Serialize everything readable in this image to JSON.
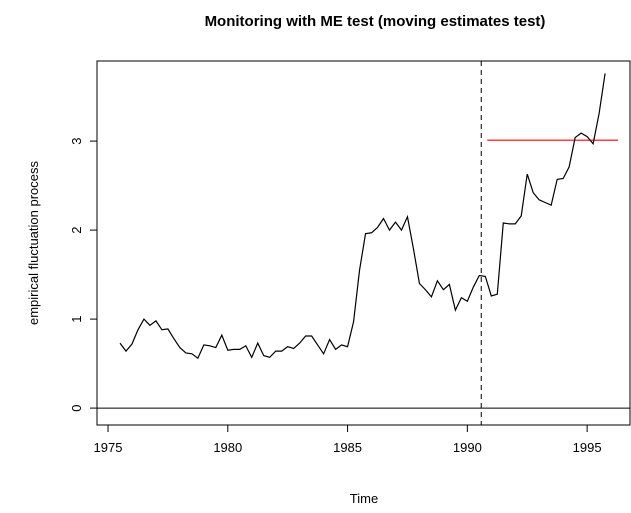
{
  "chart_data": {
    "type": "line",
    "title": "Monitoring with ME test (moving estimates test)",
    "xlabel": "Time",
    "ylabel": "empirical fluctuation process",
    "xlim": [
      1974.54,
      1996.79
    ],
    "ylim": [
      -0.19,
      3.9
    ],
    "xticks": [
      1975,
      1980,
      1985,
      1990,
      1995
    ],
    "yticks": [
      0,
      1,
      2,
      3
    ],
    "hline": 0,
    "vline": 1990.58,
    "boundary": {
      "value": 3.01,
      "start": 1990.83,
      "end": 1996.29,
      "color": "#ff0000"
    },
    "series": [
      {
        "color": "#000000",
        "x": [
          1975.5,
          1975.75,
          1976,
          1976.25,
          1976.5,
          1976.75,
          1977,
          1977.25,
          1977.5,
          1977.75,
          1978,
          1978.25,
          1978.5,
          1978.75,
          1979,
          1979.25,
          1979.5,
          1979.75,
          1980,
          1980.25,
          1980.5,
          1980.75,
          1981,
          1981.25,
          1981.5,
          1981.75,
          1982,
          1982.25,
          1982.5,
          1982.75,
          1983,
          1983.25,
          1983.5,
          1983.75,
          1984,
          1984.25,
          1984.5,
          1984.75,
          1985,
          1985.25,
          1985.5,
          1985.75,
          1986,
          1986.25,
          1986.5,
          1986.75,
          1987,
          1987.25,
          1987.5,
          1987.75,
          1988,
          1988.25,
          1988.5,
          1988.75,
          1989,
          1989.25,
          1989.5,
          1989.75,
          1990,
          1990.25,
          1990.5,
          1990.75,
          1991,
          1991.25,
          1991.5,
          1991.75,
          1992,
          1992.25,
          1992.5,
          1992.75,
          1993,
          1993.25,
          1993.5,
          1993.75,
          1994,
          1994.25,
          1994.5,
          1994.75,
          1995,
          1995.25,
          1995.5,
          1995.75
        ],
        "values": [
          0.73,
          0.64,
          0.72,
          0.88,
          1.0,
          0.93,
          0.98,
          0.88,
          0.89,
          0.78,
          0.68,
          0.62,
          0.61,
          0.56,
          0.71,
          0.7,
          0.68,
          0.82,
          0.65,
          0.66,
          0.66,
          0.7,
          0.57,
          0.73,
          0.59,
          0.57,
          0.64,
          0.64,
          0.69,
          0.67,
          0.73,
          0.81,
          0.81,
          0.71,
          0.61,
          0.77,
          0.66,
          0.71,
          0.69,
          0.97,
          1.55,
          1.96,
          1.97,
          2.03,
          2.13,
          2.0,
          2.09,
          2.0,
          2.15,
          1.79,
          1.4,
          1.33,
          1.25,
          1.43,
          1.33,
          1.39,
          1.1,
          1.24,
          1.2,
          1.36,
          1.49,
          1.48,
          1.26,
          1.28,
          2.08,
          2.07,
          2.07,
          2.16,
          2.63,
          2.42,
          2.34,
          2.31,
          2.28,
          2.57,
          2.58,
          2.71,
          3.04,
          3.09,
          3.05,
          2.97,
          3.31,
          3.76
        ]
      }
    ]
  }
}
